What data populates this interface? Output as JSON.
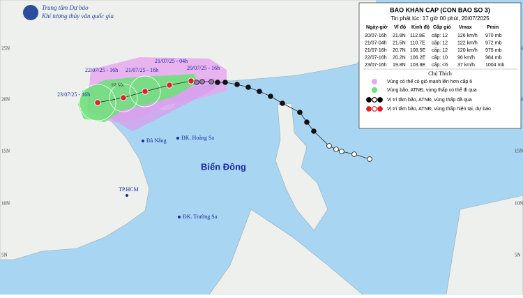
{
  "header": {
    "org": "Trung tâm Dự báo",
    "org_sub": "Khí tượng thủy văn quốc gia"
  },
  "bulletin": {
    "title": "BAO KHAN CAP (CON BAO SO 3)",
    "issued": "Tin phát lúc: 17 giờ 00 phút, 20/07/2025",
    "table": {
      "columns": [
        "Ngày-giờ",
        "Vĩ độ",
        "Kinh độ",
        "Cấp gió",
        "Vmax",
        "Pmin"
      ],
      "rows": [
        [
          "20/07-16h",
          "21.8N",
          "112.8E",
          "cấp: 12",
          "126 km/h",
          "970 mb"
        ],
        [
          "21/07-04h",
          "21.5N",
          "110.7E",
          "cấp: 12",
          "122 km/h",
          "972 mb"
        ],
        [
          "21/07-16h",
          "20.7N",
          "108.5E",
          "cấp: 12",
          "120 km/h",
          "975 mb"
        ],
        [
          "22/07-16h",
          "20.2N",
          "106.2E",
          "cấp: 10",
          "96 km/h",
          "984 mb"
        ],
        [
          "23/07-16h",
          "19.8N",
          "103.8E",
          "cấp: <6",
          "37 km/h",
          "1004 mb"
        ]
      ]
    },
    "legend": {
      "title": "Chú Thích",
      "items": [
        "Vùng có thể có gió mạnh lên hơn cấp 6",
        "Vùng bão, ATNĐ, vùng thấp có thể đi qua",
        "Vị trí tâm bão, ATNĐ, vùng thấp đã qua",
        "Vị trí tâm bão, ATNĐ, vùng thấp hiện tại, dự báo"
      ]
    }
  },
  "map": {
    "track_labels": [
      "22/07/25 - 16h",
      "21/07/25 - 16h",
      "21/07/25 - 04h",
      "20/07/25 - 16h",
      "23/07/25 - 16h"
    ],
    "places": [
      "Hà Nội",
      "Đà Nẵng",
      "ĐK. Hoàng Sa",
      "Biển Đông",
      "TP.HCM",
      "ĐK. Trường Sa"
    ],
    "latitudes": [
      "25N",
      "20N",
      "15N",
      "10N",
      "5N"
    ]
  }
}
